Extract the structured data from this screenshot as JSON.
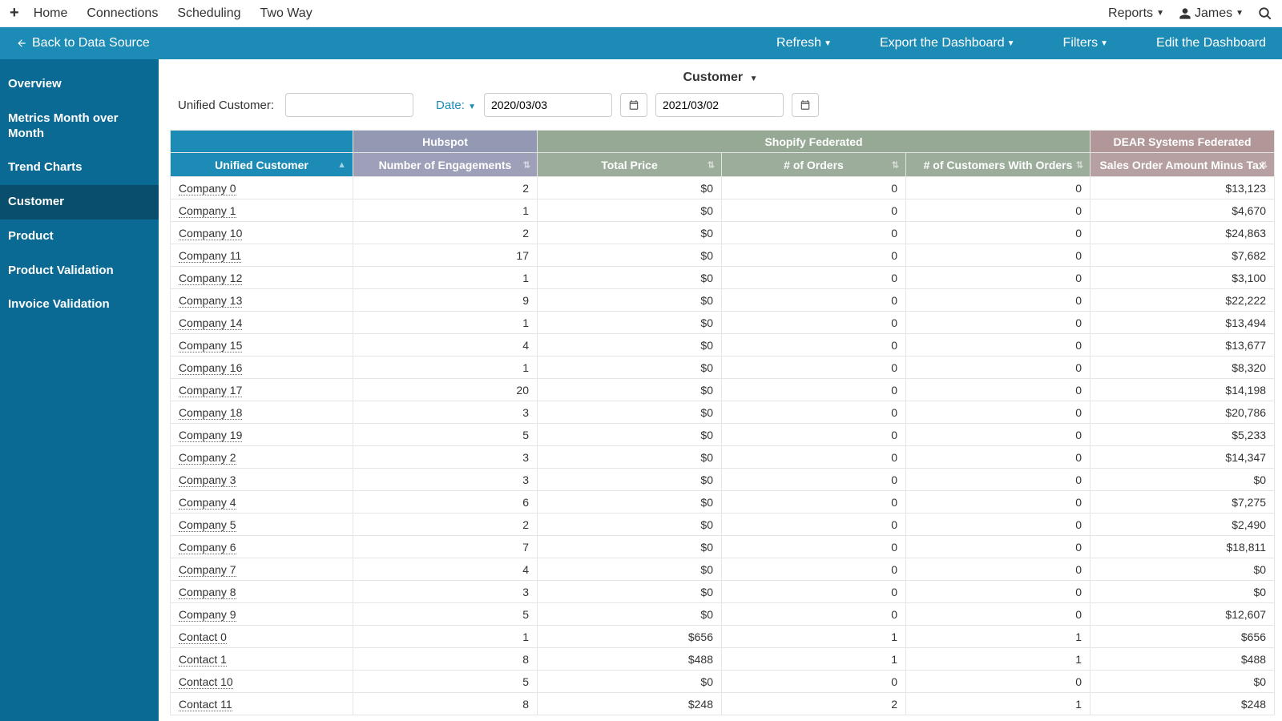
{
  "topnav": {
    "links": [
      "Home",
      "Connections",
      "Scheduling",
      "Two Way"
    ],
    "reports": "Reports",
    "user": "James"
  },
  "actionbar": {
    "back": "Back to Data Source",
    "refresh": "Refresh",
    "export": "Export the Dashboard",
    "filters": "Filters",
    "edit": "Edit the Dashboard"
  },
  "sidebar": {
    "items": [
      {
        "label": "Overview",
        "active": false
      },
      {
        "label": "Metrics Month over Month",
        "active": false
      },
      {
        "label": "Trend Charts",
        "active": false
      },
      {
        "label": "Customer",
        "active": true
      },
      {
        "label": "Product",
        "active": false
      },
      {
        "label": "Product Validation",
        "active": false
      },
      {
        "label": "Invoice Validation",
        "active": false
      }
    ]
  },
  "page": {
    "title": "Customer",
    "filter_label": "Unified Customer:",
    "filter_value": "",
    "date_label": "Date:",
    "date_from": "2020/03/03",
    "date_to": "2021/03/02"
  },
  "table": {
    "groups": [
      {
        "label": "",
        "span": 1,
        "class": "grp-uc"
      },
      {
        "label": "Hubspot",
        "span": 1,
        "class": "grp-hubspot"
      },
      {
        "label": "Shopify Federated",
        "span": 3,
        "class": "grp-shopify"
      },
      {
        "label": "DEAR Systems Federated",
        "span": 1,
        "class": "grp-dear"
      }
    ],
    "columns": [
      {
        "label": "Unified Customer",
        "class": "col-uc",
        "w": "col-w1",
        "sort": "asc"
      },
      {
        "label": "Number of Engagements",
        "class": "col-hubspot",
        "w": "col-w2",
        "sort": "both"
      },
      {
        "label": "Total Price",
        "class": "col-shopify",
        "w": "col-w3",
        "sort": "both"
      },
      {
        "label": "# of Orders",
        "class": "col-shopify",
        "w": "col-w4",
        "sort": "both"
      },
      {
        "label": "# of Customers With Orders",
        "class": "col-shopify",
        "w": "col-w5",
        "sort": "both"
      },
      {
        "label": "Sales Order Amount Minus Tax",
        "class": "col-dear",
        "w": "col-w6",
        "sort": "both"
      }
    ],
    "rows": [
      {
        "name": "Company 0",
        "eng": "2",
        "price": "$0",
        "orders": "0",
        "cust": "0",
        "amt": "$13,123"
      },
      {
        "name": "Company 1",
        "eng": "1",
        "price": "$0",
        "orders": "0",
        "cust": "0",
        "amt": "$4,670"
      },
      {
        "name": "Company 10",
        "eng": "2",
        "price": "$0",
        "orders": "0",
        "cust": "0",
        "amt": "$24,863"
      },
      {
        "name": "Company 11",
        "eng": "17",
        "price": "$0",
        "orders": "0",
        "cust": "0",
        "amt": "$7,682"
      },
      {
        "name": "Company 12",
        "eng": "1",
        "price": "$0",
        "orders": "0",
        "cust": "0",
        "amt": "$3,100"
      },
      {
        "name": "Company 13",
        "eng": "9",
        "price": "$0",
        "orders": "0",
        "cust": "0",
        "amt": "$22,222"
      },
      {
        "name": "Company 14",
        "eng": "1",
        "price": "$0",
        "orders": "0",
        "cust": "0",
        "amt": "$13,494"
      },
      {
        "name": "Company 15",
        "eng": "4",
        "price": "$0",
        "orders": "0",
        "cust": "0",
        "amt": "$13,677"
      },
      {
        "name": "Company 16",
        "eng": "1",
        "price": "$0",
        "orders": "0",
        "cust": "0",
        "amt": "$8,320"
      },
      {
        "name": "Company 17",
        "eng": "20",
        "price": "$0",
        "orders": "0",
        "cust": "0",
        "amt": "$14,198"
      },
      {
        "name": "Company 18",
        "eng": "3",
        "price": "$0",
        "orders": "0",
        "cust": "0",
        "amt": "$20,786"
      },
      {
        "name": "Company 19",
        "eng": "5",
        "price": "$0",
        "orders": "0",
        "cust": "0",
        "amt": "$5,233"
      },
      {
        "name": "Company 2",
        "eng": "3",
        "price": "$0",
        "orders": "0",
        "cust": "0",
        "amt": "$14,347"
      },
      {
        "name": "Company 3",
        "eng": "3",
        "price": "$0",
        "orders": "0",
        "cust": "0",
        "amt": "$0"
      },
      {
        "name": "Company 4",
        "eng": "6",
        "price": "$0",
        "orders": "0",
        "cust": "0",
        "amt": "$7,275"
      },
      {
        "name": "Company 5",
        "eng": "2",
        "price": "$0",
        "orders": "0",
        "cust": "0",
        "amt": "$2,490"
      },
      {
        "name": "Company 6",
        "eng": "7",
        "price": "$0",
        "orders": "0",
        "cust": "0",
        "amt": "$18,811"
      },
      {
        "name": "Company 7",
        "eng": "4",
        "price": "$0",
        "orders": "0",
        "cust": "0",
        "amt": "$0"
      },
      {
        "name": "Company 8",
        "eng": "3",
        "price": "$0",
        "orders": "0",
        "cust": "0",
        "amt": "$0"
      },
      {
        "name": "Company 9",
        "eng": "5",
        "price": "$0",
        "orders": "0",
        "cust": "0",
        "amt": "$12,607"
      },
      {
        "name": "Contact 0",
        "eng": "1",
        "price": "$656",
        "orders": "1",
        "cust": "1",
        "amt": "$656"
      },
      {
        "name": "Contact 1",
        "eng": "8",
        "price": "$488",
        "orders": "1",
        "cust": "1",
        "amt": "$488"
      },
      {
        "name": "Contact 10",
        "eng": "5",
        "price": "$0",
        "orders": "0",
        "cust": "0",
        "amt": "$0"
      },
      {
        "name": "Contact 11",
        "eng": "8",
        "price": "$248",
        "orders": "2",
        "cust": "1",
        "amt": "$248"
      }
    ]
  },
  "colors": {
    "teal_bar": "#1c8bb5",
    "sidebar_bg": "#0b6a94",
    "sidebar_active": "#094e6d",
    "hubspot": "#9398b3",
    "shopify": "#95a994",
    "dear": "#b19797"
  }
}
